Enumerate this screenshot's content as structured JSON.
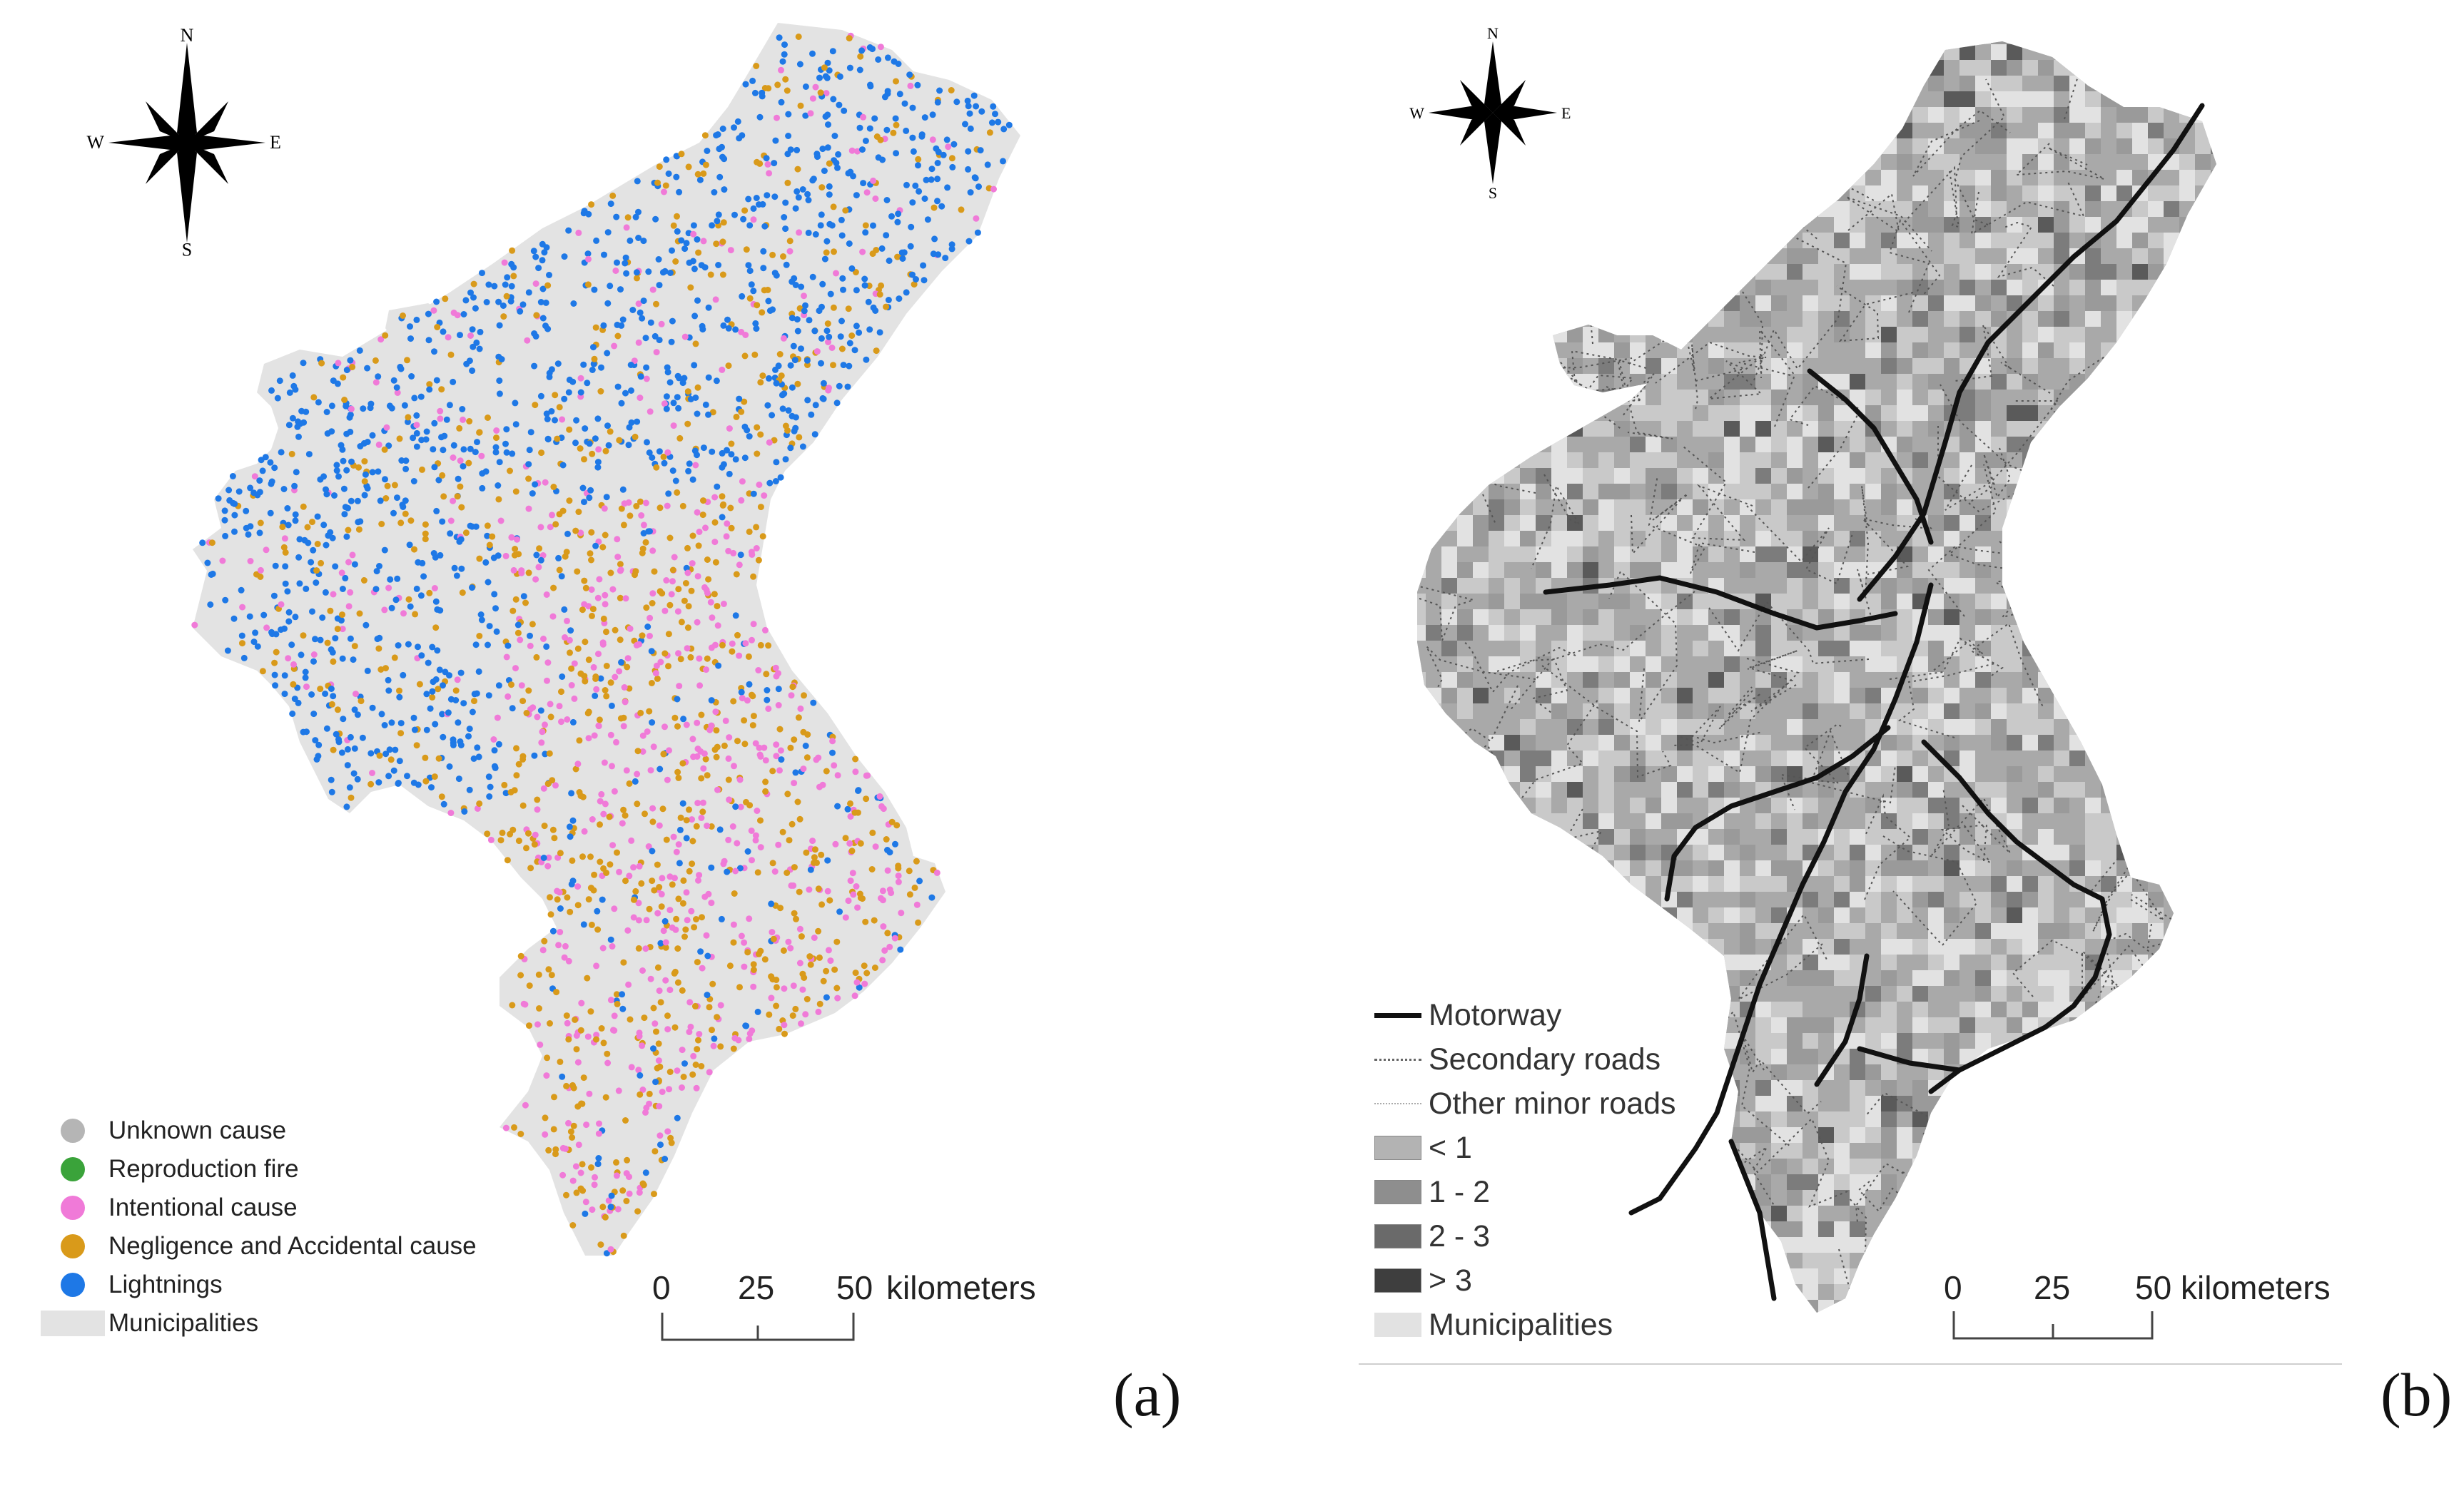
{
  "panel_a": {
    "caption": "(a)",
    "compass": {
      "n": "N",
      "s": "S",
      "e": "E",
      "w": "W"
    },
    "legend": [
      {
        "label": "Unknown cause",
        "color": "#b5b5b5",
        "shape": "dot"
      },
      {
        "label": "Reproduction fire",
        "color": "#3aa33a",
        "shape": "dot"
      },
      {
        "label": "Intentional cause",
        "color": "#f07ad8",
        "shape": "dot"
      },
      {
        "label": "Negligence and Accidental cause",
        "color": "#d99a1a",
        "shape": "dot"
      },
      {
        "label": "Lightnings",
        "color": "#1e78e6",
        "shape": "dot"
      },
      {
        "label": "Municipalities",
        "color": "#e3e3e3",
        "shape": "box"
      }
    ],
    "scale": {
      "ticks": [
        "0",
        "25",
        "50"
      ],
      "unit": "kilometers"
    }
  },
  "panel_b": {
    "caption": "(b)",
    "compass": {
      "n": "N",
      "s": "S",
      "e": "E",
      "w": "W"
    },
    "legend": [
      {
        "label": "Motorway",
        "kind": "solid"
      },
      {
        "label": "Secondary roads",
        "kind": "dotted"
      },
      {
        "label": "Other minor roads",
        "kind": "minor"
      },
      {
        "label": "< 1",
        "kind": "swatch",
        "color": "#b3b3b3"
      },
      {
        "label": "1 - 2",
        "kind": "swatch",
        "color": "#8e8e8e"
      },
      {
        "label": "2 - 3",
        "kind": "swatch",
        "color": "#6a6a6a"
      },
      {
        "label": "> 3",
        "kind": "swatch",
        "color": "#3e3e3e"
      },
      {
        "label": "Municipalities",
        "kind": "swatch",
        "color": "#e2e2e2"
      }
    ],
    "scale": {
      "ticks": [
        "0",
        "25",
        "50"
      ],
      "unit": "kilometers"
    }
  }
}
